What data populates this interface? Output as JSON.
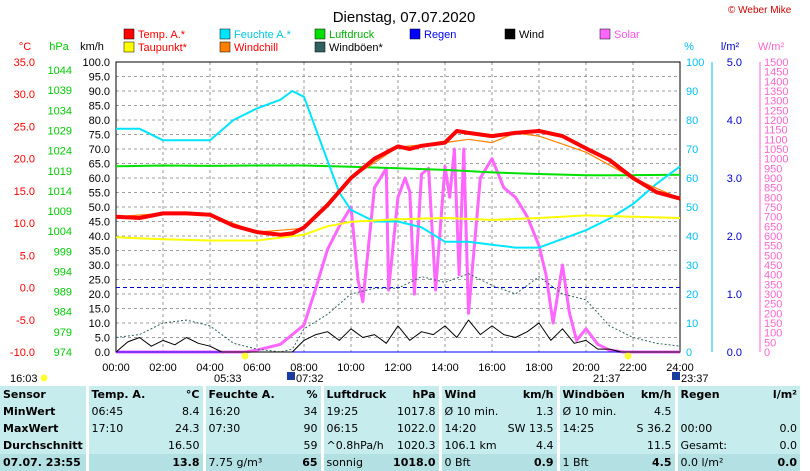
{
  "title": "Dienstag, 07.07.2020",
  "copyright": "© Weber Mike",
  "colors": {
    "temp": "#ff0000",
    "dew": "#ffff00",
    "humidity": "#00e5ff",
    "windchill": "#ff8000",
    "pressure": "#00e000",
    "gust": "#306060",
    "rain": "#0000ff",
    "wind": "#000000",
    "solar": "#ff66ff",
    "axis_temp": "#ff0000",
    "axis_press": "#00cc00",
    "axis_hum": "#00bfff",
    "axis_rain": "#0000cc",
    "axis_solar": "#ff66cc",
    "stats_bg": "#c6ecee"
  },
  "legend": [
    {
      "label": "Temp. A.*",
      "color": "#ff0000"
    },
    {
      "label": "Feuchte A.*",
      "color": "#00e5ff"
    },
    {
      "label": "Luftdruck",
      "color": "#00e000"
    },
    {
      "label": "Regen",
      "color": "#0000ff"
    },
    {
      "label": "Wind",
      "color": "#000000"
    },
    {
      "label": "Solar",
      "color": "#ff66ff"
    },
    {
      "label": "Taupunkt*",
      "color": "#ffff00"
    },
    {
      "label": "Windchill",
      "color": "#ff8000"
    },
    {
      "label": "Windböen*",
      "color": "#306060"
    }
  ],
  "axes_units": {
    "temp": "°C",
    "press": "hPa",
    "wind": "km/h",
    "hum": "%",
    "rain": "l/m²",
    "solar": "W/m²"
  },
  "axes_ticks": {
    "temp": [
      "35.0",
      "30.0",
      "25.0",
      "20.0",
      "15.0",
      "10.0",
      "5.0",
      "0.0",
      "-5.0",
      "-10.0"
    ],
    "press": [
      "1044",
      "1039",
      "1034",
      "1029",
      "1024",
      "1019",
      "1014",
      "1009",
      "1004",
      "999",
      "994",
      "989",
      "984",
      "979",
      "974"
    ],
    "wind": [
      "100.0",
      "95.0",
      "90.0",
      "85.0",
      "80.0",
      "75.0",
      "70.0",
      "65.0",
      "60.0",
      "55.0",
      "50.0",
      "45.0",
      "40.0",
      "35.0",
      "30.0",
      "25.0",
      "20.0",
      "15.0",
      "10.0",
      "5.0",
      "0.0"
    ],
    "hum": [
      "100",
      "90",
      "80",
      "70",
      "60",
      "50",
      "40",
      "30",
      "20",
      "10",
      "0"
    ],
    "rain": [
      "5.0",
      "4.0",
      "3.0",
      "2.0",
      "1.0",
      "0.0"
    ],
    "solar": [
      "1500",
      "1450",
      "1400",
      "1350",
      "1300",
      "1250",
      "1200",
      "1150",
      "1100",
      "1050",
      "1000",
      "950",
      "900",
      "850",
      "800",
      "750",
      "700",
      "650",
      "600",
      "550",
      "500",
      "450",
      "400",
      "350",
      "300",
      "250",
      "200",
      "150",
      "100",
      "50",
      "0"
    ]
  },
  "time_ticks": [
    "00:00",
    "02:00",
    "04:00",
    "06:00",
    "08:00",
    "10:00",
    "12:00",
    "14:00",
    "16:00",
    "18:00",
    "20:00",
    "22:00",
    "24:00"
  ],
  "sun_labels": {
    "moonset": "16:03",
    "sunrise": "05:33",
    "sunrise2": "07:32",
    "sunset": "21:37",
    "moonrise": "23:37"
  },
  "chart_data": {
    "type": "line",
    "title": "Dienstag, 07.07.2020",
    "x_unit": "Uhrzeit (h)",
    "xlim": [
      0,
      24
    ],
    "ylim_temp": [
      -10,
      35
    ],
    "ylim_wind": [
      0,
      100
    ],
    "ylim_humidity": [
      0,
      100
    ],
    "ylim_pressure": [
      974,
      1046
    ],
    "ylim_rain": [
      0,
      5
    ],
    "ylim_solar": [
      0,
      1500
    ],
    "grid": true,
    "series": [
      {
        "name": "Temp. A.*",
        "axis": "temp",
        "x": [
          0,
          1,
          2,
          3,
          4,
          5,
          6,
          7,
          7.5,
          8,
          9,
          10,
          11,
          12,
          12.5,
          13,
          14,
          14.5,
          15,
          16,
          17,
          18,
          19,
          20,
          21,
          22,
          23,
          24
        ],
        "y": [
          11,
          10.8,
          11.5,
          11.5,
          11.3,
          9.6,
          8.6,
          8.2,
          8.4,
          9.3,
          12.8,
          17,
          20,
          21.9,
          21.5,
          22,
          22.5,
          24.3,
          24,
          23.5,
          24,
          24.3,
          23.5,
          21.6,
          19.8,
          17,
          14.8,
          13.8
        ]
      },
      {
        "name": "Taupunkt*",
        "axis": "temp",
        "x": [
          0,
          2,
          4,
          6,
          8,
          9,
          10,
          12,
          14,
          16,
          18,
          20,
          22,
          24
        ],
        "y": [
          7.8,
          7.5,
          7.3,
          7.3,
          8.2,
          9.5,
          10.2,
          10.6,
          10.8,
          10.5,
          10.8,
          11.2,
          11,
          10.8
        ]
      },
      {
        "name": "Windchill",
        "axis": "temp",
        "x": [
          0,
          2,
          4,
          6,
          8,
          10,
          12,
          14,
          15,
          16,
          17,
          18,
          20,
          22,
          24
        ],
        "y": [
          11,
          11.5,
          11.3,
          8.6,
          9.2,
          17,
          21.8,
          22.5,
          23,
          22.5,
          24,
          23.5,
          21,
          17,
          13.8
        ]
      },
      {
        "name": "Feuchte A.*",
        "axis": "humidity",
        "x": [
          0,
          1,
          2,
          3,
          4,
          5,
          6,
          7,
          7.5,
          8,
          9,
          9.5,
          10,
          11,
          12,
          13,
          14,
          15,
          16,
          17,
          18,
          19,
          20,
          21,
          22,
          23,
          24
        ],
        "y": [
          77,
          77,
          73,
          73,
          73,
          80,
          84,
          87,
          90,
          88,
          66,
          55,
          49,
          45,
          45,
          43,
          38,
          38,
          37,
          36,
          36,
          39,
          42,
          46,
          51,
          58,
          64
        ]
      },
      {
        "name": "Luftdruck",
        "axis": "pressure",
        "x": [
          0,
          2,
          4,
          6,
          8,
          10,
          12,
          14,
          16,
          18,
          20,
          22,
          24
        ],
        "y": [
          1020.1,
          1020.3,
          1020.2,
          1020.3,
          1020.3,
          1020,
          1019.6,
          1019.2,
          1018.6,
          1018.2,
          1017.9,
          1017.9,
          1018
        ]
      },
      {
        "name": "Solar",
        "axis": "solar",
        "x": [
          0,
          5.5,
          6,
          7,
          7.5,
          8,
          8.5,
          9,
          9.5,
          10,
          10.3,
          10.5,
          11,
          11.5,
          11.6,
          12,
          12.3,
          12.5,
          12.7,
          13,
          13.3,
          13.6,
          14,
          14.2,
          14.4,
          14.6,
          14.8,
          15,
          15.5,
          16,
          16.5,
          17,
          17.5,
          18,
          18.3,
          18.6,
          19,
          19.3,
          19.6,
          20,
          20.5,
          21,
          21.6,
          24
        ],
        "y": [
          0,
          0,
          10,
          40,
          90,
          140,
          330,
          530,
          650,
          750,
          370,
          260,
          850,
          950,
          320,
          800,
          900,
          830,
          300,
          920,
          950,
          320,
          960,
          800,
          1050,
          400,
          1050,
          200,
          900,
          1000,
          850,
          800,
          700,
          550,
          400,
          150,
          450,
          200,
          60,
          120,
          40,
          10,
          0,
          0
        ]
      },
      {
        "name": "Wind",
        "axis": "wind",
        "x": [
          0,
          0.5,
          1,
          1.5,
          2,
          2.5,
          3,
          3.5,
          4,
          4.5,
          5,
          6,
          7,
          7.5,
          8,
          8.5,
          9,
          9.5,
          10,
          10.5,
          11,
          11.5,
          12,
          12.5,
          13,
          13.5,
          14,
          14.5,
          15,
          15.5,
          16,
          16.5,
          17,
          17.5,
          18,
          18.5,
          19,
          19.5,
          20,
          20.5,
          21,
          21.5,
          22,
          23,
          24
        ],
        "y": [
          0,
          3.5,
          5,
          2,
          4,
          2.5,
          5,
          3,
          2,
          0,
          0,
          0,
          0,
          0,
          4,
          6,
          7,
          4,
          8,
          5,
          6,
          3,
          9,
          4,
          7,
          6,
          9,
          5,
          11,
          6,
          9,
          6,
          5,
          7,
          10,
          4,
          8,
          3,
          4,
          1,
          1,
          0,
          0,
          0,
          0
        ]
      },
      {
        "name": "Windböen*",
        "axis": "wind",
        "x": [
          0,
          1,
          2,
          3,
          4,
          5,
          6,
          7,
          7.5,
          8,
          9,
          10,
          11,
          12,
          13,
          14,
          15,
          16,
          17,
          18,
          19,
          20,
          21,
          22,
          23,
          24
        ],
        "y": [
          5,
          6,
          10,
          11,
          9,
          3,
          1,
          0,
          1,
          8,
          13,
          20,
          22,
          22,
          26,
          24,
          27,
          23,
          20,
          26,
          20,
          18,
          9,
          5,
          3,
          2
        ]
      },
      {
        "name": "Regen",
        "axis": "rain",
        "x": [
          0,
          24
        ],
        "y": [
          0,
          0
        ]
      }
    ],
    "reference_line": {
      "label": "0.0",
      "axis": "temp",
      "y": 0
    }
  },
  "stats": {
    "headers": {
      "sensor": "Sensor",
      "temp": "Temp. A.",
      "temp_unit": "°C",
      "hum": "Feuchte A.",
      "hum_unit": "%",
      "press": "Luftdruck",
      "press_unit": "hPa",
      "wind": "Wind",
      "wind_unit": "km/h",
      "gust": "Windböen",
      "gust_unit": "km/h",
      "rain": "Regen",
      "rain_unit": "l/m²"
    },
    "min": {
      "label": "MinWert",
      "temp_t": "06:45",
      "temp_v": "8.4",
      "hum_t": "16:20",
      "hum_v": "34",
      "press_t": "19:25",
      "press_v": "1017.8",
      "wind_a": "Ø 10 min.",
      "wind_v": "1.3",
      "gust_a": "Ø 10 min.",
      "gust_v": "4.5",
      "rain_a": "",
      "rain_v": ""
    },
    "max": {
      "label": "MaxWert",
      "temp_t": "17:10",
      "temp_v": "24.3",
      "hum_t": "07:30",
      "hum_v": "90",
      "press_t": "06:15",
      "press_v": "1022.0",
      "wind_a": "14:20",
      "wind_b": "SW 13.5",
      "gust_a": "14:25",
      "gust_v": "S 36.2",
      "rain_a": "00:00",
      "rain_v": "0.0"
    },
    "avg": {
      "label": "Durchschnitt",
      "temp_v": "16.50",
      "hum_v": "59",
      "press_t": "^0.8hPa/h",
      "press_v": "1020.3",
      "wind_a": "106.1 km",
      "wind_v": "4.4",
      "gust_v": "11.5",
      "rain_a": "Gesamt:",
      "rain_v": "0.0"
    },
    "current": {
      "label": "07.07. 23:55",
      "temp_v": "13.8",
      "hum_a": "7.75 g/m³",
      "hum_v": "65",
      "press_a": "sonnig",
      "press_v": "1018.0",
      "wind_a": "0 Bft",
      "wind_v": "0.9",
      "gust_a": "1 Bft",
      "gust_v": "4.5",
      "rain_a": "0.0 l/m²",
      "rain_v": "0.0"
    }
  }
}
